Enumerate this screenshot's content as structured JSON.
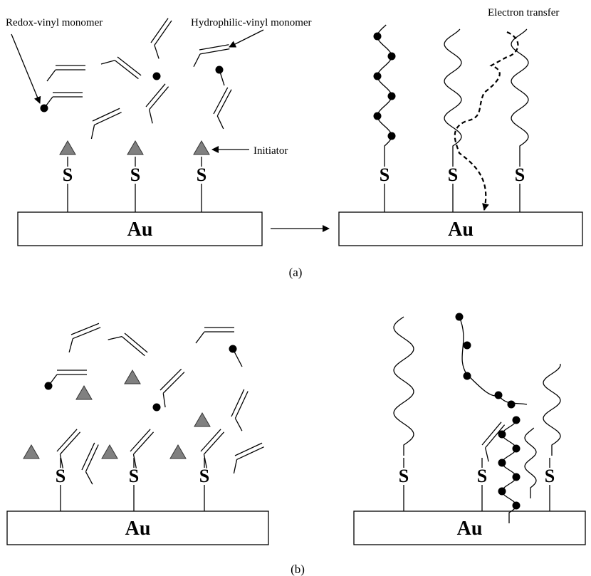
{
  "labels": {
    "redox_monomer": "Redox-vinyl monomer",
    "hydrophilic_monomer": "Hydrophilic-vinyl monomer",
    "electron_transfer": "Electron transfer",
    "initiator": "Initiator"
  },
  "panels": [
    {
      "caption": "(a)",
      "substrates": [
        "Au",
        "Au"
      ],
      "sulfurs": [
        "S",
        "S",
        "S",
        "S",
        "S",
        "S"
      ]
    },
    {
      "caption": "(b)",
      "substrates": [
        "Au",
        "Au"
      ],
      "sulfurs": [
        "S",
        "S",
        "S",
        "S",
        "S",
        "S"
      ]
    }
  ]
}
